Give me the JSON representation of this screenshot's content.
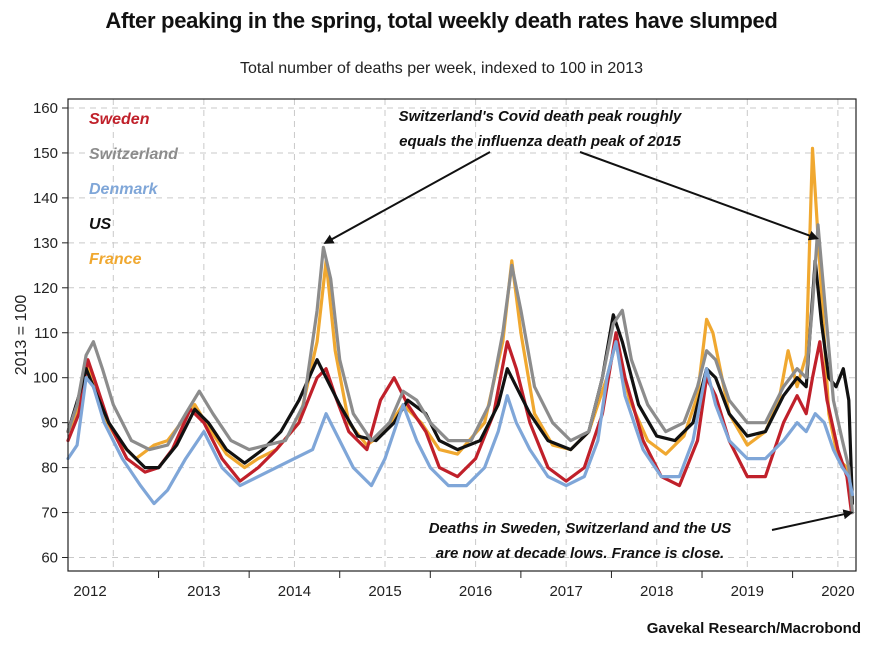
{
  "title": "After peaking in the spring, total weekly death rates have slumped",
  "subtitle": "Total number of deaths per week, indexed to 100 in 2013",
  "source": "Gavekal Research/Macrobond",
  "colors": {
    "Sweden": "#c0202a",
    "Switzerland": "#8c8c8c",
    "Denmark": "#7fa6d8",
    "US": "#111111",
    "France": "#f0a830"
  },
  "chart_data": {
    "type": "line",
    "title": "After peaking in the spring, total weekly death rates have slumped",
    "ylabel": "2013 = 100",
    "xlabel": "",
    "ylim": [
      57,
      162
    ],
    "xlim": [
      2012.0,
      2020.7
    ],
    "yticks": [
      60,
      70,
      80,
      90,
      100,
      110,
      120,
      130,
      140,
      150,
      160
    ],
    "x_tick_labels": [
      "2012",
      "2013",
      "2014",
      "2015",
      "2016",
      "2017",
      "2018",
      "2019",
      "2020"
    ],
    "series": [
      {
        "name": "France",
        "color": "#f0a830",
        "points": [
          [
            2012.0,
            88
          ],
          [
            2012.12,
            93
          ],
          [
            2012.2,
            103
          ],
          [
            2012.28,
            100
          ],
          [
            2012.38,
            92
          ],
          [
            2012.55,
            86
          ],
          [
            2012.75,
            82
          ],
          [
            2012.95,
            85
          ],
          [
            2013.1,
            86
          ],
          [
            2013.25,
            90
          ],
          [
            2013.4,
            94
          ],
          [
            2013.55,
            89
          ],
          [
            2013.75,
            83
          ],
          [
            2013.95,
            80
          ],
          [
            2014.1,
            82
          ],
          [
            2014.3,
            84
          ],
          [
            2014.55,
            90
          ],
          [
            2014.75,
            108
          ],
          [
            2014.85,
            126
          ],
          [
            2014.95,
            106
          ],
          [
            2015.1,
            90
          ],
          [
            2015.3,
            85
          ],
          [
            2015.5,
            88
          ],
          [
            2015.7,
            94
          ],
          [
            2015.9,
            90
          ],
          [
            2016.1,
            84
          ],
          [
            2016.3,
            83
          ],
          [
            2016.6,
            90
          ],
          [
            2016.8,
            108
          ],
          [
            2016.9,
            126
          ],
          [
            2017.0,
            110
          ],
          [
            2017.15,
            92
          ],
          [
            2017.35,
            85
          ],
          [
            2017.55,
            84
          ],
          [
            2017.75,
            88
          ],
          [
            2017.95,
            100
          ],
          [
            2018.05,
            108
          ],
          [
            2018.2,
            95
          ],
          [
            2018.4,
            86
          ],
          [
            2018.6,
            83
          ],
          [
            2018.8,
            87
          ],
          [
            2018.95,
            96
          ],
          [
            2019.05,
            113
          ],
          [
            2019.12,
            110
          ],
          [
            2019.3,
            92
          ],
          [
            2019.5,
            85
          ],
          [
            2019.7,
            88
          ],
          [
            2019.85,
            95
          ],
          [
            2019.95,
            106
          ],
          [
            2020.05,
            98
          ],
          [
            2020.15,
            105
          ],
          [
            2020.22,
            151
          ],
          [
            2020.3,
            125
          ],
          [
            2020.4,
            92
          ],
          [
            2020.5,
            82
          ],
          [
            2020.6,
            80
          ],
          [
            2020.65,
            76
          ]
        ]
      },
      {
        "name": "Sweden",
        "color": "#c0202a",
        "points": [
          [
            2012.0,
            86
          ],
          [
            2012.12,
            92
          ],
          [
            2012.22,
            104
          ],
          [
            2012.32,
            98
          ],
          [
            2012.45,
            90
          ],
          [
            2012.65,
            82
          ],
          [
            2012.85,
            79
          ],
          [
            2013.0,
            80
          ],
          [
            2013.15,
            84
          ],
          [
            2013.35,
            93
          ],
          [
            2013.5,
            90
          ],
          [
            2013.7,
            82
          ],
          [
            2013.9,
            77
          ],
          [
            2014.1,
            80
          ],
          [
            2014.3,
            84
          ],
          [
            2014.55,
            90
          ],
          [
            2014.75,
            100
          ],
          [
            2014.85,
            102
          ],
          [
            2014.95,
            96
          ],
          [
            2015.1,
            88
          ],
          [
            2015.3,
            84
          ],
          [
            2015.45,
            95
          ],
          [
            2015.6,
            100
          ],
          [
            2015.75,
            94
          ],
          [
            2015.95,
            88
          ],
          [
            2016.1,
            80
          ],
          [
            2016.3,
            78
          ],
          [
            2016.5,
            82
          ],
          [
            2016.7,
            92
          ],
          [
            2016.85,
            108
          ],
          [
            2016.95,
            102
          ],
          [
            2017.1,
            90
          ],
          [
            2017.3,
            80
          ],
          [
            2017.5,
            77
          ],
          [
            2017.7,
            80
          ],
          [
            2017.9,
            92
          ],
          [
            2018.05,
            110
          ],
          [
            2018.15,
            100
          ],
          [
            2018.35,
            86
          ],
          [
            2018.55,
            78
          ],
          [
            2018.75,
            76
          ],
          [
            2018.95,
            86
          ],
          [
            2019.05,
            100
          ],
          [
            2019.15,
            96
          ],
          [
            2019.3,
            86
          ],
          [
            2019.5,
            78
          ],
          [
            2019.7,
            78
          ],
          [
            2019.9,
            90
          ],
          [
            2020.05,
            96
          ],
          [
            2020.15,
            92
          ],
          [
            2020.22,
            100
          ],
          [
            2020.3,
            108
          ],
          [
            2020.38,
            95
          ],
          [
            2020.5,
            84
          ],
          [
            2020.6,
            78
          ],
          [
            2020.65,
            70
          ]
        ]
      },
      {
        "name": "US",
        "color": "#111111",
        "points": [
          [
            2012.0,
            88
          ],
          [
            2012.12,
            96
          ],
          [
            2012.2,
            102
          ],
          [
            2012.3,
            97
          ],
          [
            2012.45,
            90
          ],
          [
            2012.65,
            84
          ],
          [
            2012.85,
            80
          ],
          [
            2013.0,
            80
          ],
          [
            2013.2,
            85
          ],
          [
            2013.4,
            93
          ],
          [
            2013.55,
            90
          ],
          [
            2013.75,
            84
          ],
          [
            2013.95,
            81
          ],
          [
            2014.15,
            84
          ],
          [
            2014.35,
            88
          ],
          [
            2014.55,
            95
          ],
          [
            2014.75,
            104
          ],
          [
            2014.85,
            100
          ],
          [
            2015.0,
            94
          ],
          [
            2015.2,
            87
          ],
          [
            2015.4,
            86
          ],
          [
            2015.6,
            90
          ],
          [
            2015.75,
            95
          ],
          [
            2015.95,
            92
          ],
          [
            2016.1,
            86
          ],
          [
            2016.3,
            84
          ],
          [
            2016.55,
            86
          ],
          [
            2016.75,
            94
          ],
          [
            2016.85,
            102
          ],
          [
            2016.95,
            98
          ],
          [
            2017.1,
            92
          ],
          [
            2017.3,
            86
          ],
          [
            2017.55,
            84
          ],
          [
            2017.75,
            88
          ],
          [
            2017.9,
            100
          ],
          [
            2018.02,
            114
          ],
          [
            2018.12,
            108
          ],
          [
            2018.3,
            94
          ],
          [
            2018.5,
            87
          ],
          [
            2018.7,
            86
          ],
          [
            2018.9,
            90
          ],
          [
            2019.05,
            102
          ],
          [
            2019.15,
            100
          ],
          [
            2019.3,
            92
          ],
          [
            2019.5,
            87
          ],
          [
            2019.7,
            88
          ],
          [
            2019.9,
            96
          ],
          [
            2020.05,
            100
          ],
          [
            2020.15,
            98
          ],
          [
            2020.25,
            126
          ],
          [
            2020.32,
            112
          ],
          [
            2020.4,
            100
          ],
          [
            2020.48,
            98
          ],
          [
            2020.56,
            102
          ],
          [
            2020.62,
            95
          ],
          [
            2020.66,
            72
          ]
        ]
      },
      {
        "name": "Switzerland",
        "color": "#8c8c8c",
        "points": [
          [
            2012.0,
            88
          ],
          [
            2012.1,
            94
          ],
          [
            2012.2,
            105
          ],
          [
            2012.28,
            108
          ],
          [
            2012.38,
            102
          ],
          [
            2012.5,
            94
          ],
          [
            2012.7,
            86
          ],
          [
            2012.9,
            84
          ],
          [
            2013.1,
            85
          ],
          [
            2013.3,
            92
          ],
          [
            2013.45,
            97
          ],
          [
            2013.6,
            92
          ],
          [
            2013.8,
            86
          ],
          [
            2014.0,
            84
          ],
          [
            2014.2,
            85
          ],
          [
            2014.4,
            86
          ],
          [
            2014.6,
            94
          ],
          [
            2014.75,
            115
          ],
          [
            2014.82,
            129
          ],
          [
            2014.9,
            122
          ],
          [
            2015.0,
            104
          ],
          [
            2015.15,
            92
          ],
          [
            2015.35,
            86
          ],
          [
            2015.55,
            90
          ],
          [
            2015.7,
            97
          ],
          [
            2015.85,
            95
          ],
          [
            2016.0,
            90
          ],
          [
            2016.2,
            86
          ],
          [
            2016.45,
            86
          ],
          [
            2016.65,
            94
          ],
          [
            2016.8,
            110
          ],
          [
            2016.9,
            125
          ],
          [
            2017.0,
            115
          ],
          [
            2017.15,
            98
          ],
          [
            2017.35,
            90
          ],
          [
            2017.55,
            86
          ],
          [
            2017.75,
            88
          ],
          [
            2017.9,
            100
          ],
          [
            2018.02,
            112
          ],
          [
            2018.12,
            115
          ],
          [
            2018.22,
            104
          ],
          [
            2018.4,
            94
          ],
          [
            2018.6,
            88
          ],
          [
            2018.8,
            90
          ],
          [
            2018.95,
            98
          ],
          [
            2019.05,
            106
          ],
          [
            2019.15,
            104
          ],
          [
            2019.3,
            95
          ],
          [
            2019.5,
            90
          ],
          [
            2019.7,
            90
          ],
          [
            2019.9,
            98
          ],
          [
            2020.05,
            102
          ],
          [
            2020.15,
            100
          ],
          [
            2020.22,
            116
          ],
          [
            2020.28,
            134
          ],
          [
            2020.35,
            118
          ],
          [
            2020.45,
            95
          ],
          [
            2020.55,
            86
          ],
          [
            2020.62,
            80
          ],
          [
            2020.66,
            70
          ]
        ]
      },
      {
        "name": "Denmark",
        "color": "#7fa6d8",
        "points": [
          [
            2012.0,
            82
          ],
          [
            2012.1,
            85
          ],
          [
            2012.2,
            100
          ],
          [
            2012.28,
            98
          ],
          [
            2012.4,
            90
          ],
          [
            2012.6,
            82
          ],
          [
            2012.8,
            76
          ],
          [
            2012.95,
            72
          ],
          [
            2013.1,
            75
          ],
          [
            2013.3,
            82
          ],
          [
            2013.5,
            88
          ],
          [
            2013.7,
            80
          ],
          [
            2013.9,
            76
          ],
          [
            2014.1,
            78
          ],
          [
            2014.3,
            80
          ],
          [
            2014.5,
            82
          ],
          [
            2014.7,
            84
          ],
          [
            2014.85,
            92
          ],
          [
            2015.0,
            86
          ],
          [
            2015.15,
            80
          ],
          [
            2015.35,
            76
          ],
          [
            2015.5,
            82
          ],
          [
            2015.7,
            94
          ],
          [
            2015.85,
            86
          ],
          [
            2016.0,
            80
          ],
          [
            2016.2,
            76
          ],
          [
            2016.4,
            76
          ],
          [
            2016.6,
            80
          ],
          [
            2016.75,
            88
          ],
          [
            2016.85,
            96
          ],
          [
            2016.95,
            90
          ],
          [
            2017.1,
            84
          ],
          [
            2017.3,
            78
          ],
          [
            2017.5,
            76
          ],
          [
            2017.7,
            78
          ],
          [
            2017.85,
            86
          ],
          [
            2017.95,
            100
          ],
          [
            2018.05,
            108
          ],
          [
            2018.15,
            96
          ],
          [
            2018.35,
            84
          ],
          [
            2018.55,
            78
          ],
          [
            2018.75,
            78
          ],
          [
            2018.9,
            86
          ],
          [
            2019.05,
            102
          ],
          [
            2019.15,
            94
          ],
          [
            2019.3,
            86
          ],
          [
            2019.5,
            82
          ],
          [
            2019.7,
            82
          ],
          [
            2019.9,
            86
          ],
          [
            2020.05,
            90
          ],
          [
            2020.15,
            88
          ],
          [
            2020.25,
            92
          ],
          [
            2020.35,
            90
          ],
          [
            2020.45,
            84
          ],
          [
            2020.55,
            80
          ],
          [
            2020.62,
            78
          ],
          [
            2020.66,
            74
          ]
        ]
      }
    ],
    "legend": [
      "Sweden",
      "Switzerland",
      "Denmark",
      "US",
      "France"
    ],
    "legend_position": "top-left",
    "grid": true,
    "annotations": [
      {
        "lines": [
          "Switzerland's Covid death peak roughly",
          "equals the influenza death peak of 2015"
        ]
      },
      {
        "lines": [
          "Deaths in Sweden, Switzerland and the US",
          "are now at decade lows. France is close."
        ]
      }
    ]
  }
}
